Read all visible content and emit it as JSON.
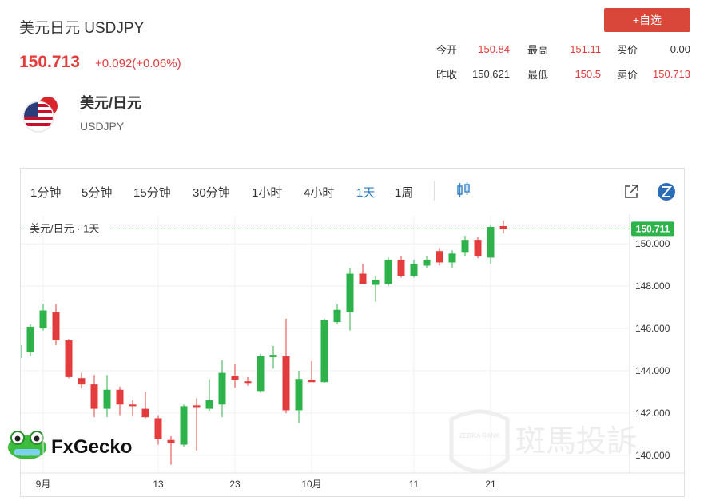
{
  "header": {
    "title": "美元日元 USDJPY",
    "price": "150.713",
    "change": "+0.092(+0.06%)",
    "button": "+自选",
    "stats": [
      [
        {
          "label": "今开",
          "value": "150.84"
        },
        {
          "label": "最高",
          "value": "151.11"
        },
        {
          "label": "买价",
          "value": "0.00"
        }
      ],
      [
        {
          "label": "昨收",
          "value": "150.621"
        },
        {
          "label": "最低",
          "value": "150.5"
        },
        {
          "label": "卖价",
          "value": "150.713"
        }
      ]
    ],
    "name": "美元/日元",
    "code": "USDJPY"
  },
  "toolbar": {
    "intervals": [
      "1分钟",
      "5分钟",
      "15分钟",
      "30分钟",
      "1小时",
      "4小时",
      "1天",
      "1周"
    ],
    "active": 6
  },
  "watermarks": {
    "brand": "FxGecko",
    "zebra": "斑馬投訴",
    "zebra_en": "ZEBRA RANK"
  },
  "chart_data": {
    "type": "candlestick",
    "legend": "美元/日元 · 1天",
    "up_color": "#2db34a",
    "down_color": "#e23c3c",
    "categories": [
      null,
      null,
      "9月",
      null,
      null,
      null,
      null,
      null,
      null,
      null,
      null,
      "13",
      null,
      null,
      null,
      null,
      null,
      "23",
      null,
      null,
      null,
      null,
      null,
      "10月",
      null,
      null,
      null,
      null,
      null,
      null,
      null,
      "11",
      null,
      null,
      null,
      null,
      null,
      "21",
      null
    ],
    "open": [
      144.6,
      144.87,
      146.0,
      146.77,
      145.44,
      143.65,
      143.35,
      142.2,
      143.1,
      142.4,
      142.2,
      141.75,
      140.72,
      140.5,
      142.36,
      142.2,
      142.4,
      143.76,
      143.5,
      143.04,
      144.64,
      144.68,
      142.13,
      143.57,
      143.46,
      146.3,
      146.77,
      148.59,
      148.06,
      148.1,
      149.24,
      148.48,
      148.97,
      149.66,
      149.12,
      149.58,
      150.19,
      149.35,
      150.84
    ],
    "high": [
      145.4,
      146.2,
      147.15,
      147.15,
      145.5,
      143.9,
      143.8,
      143.8,
      143.25,
      142.6,
      143.0,
      141.9,
      140.9,
      142.4,
      142.7,
      143.6,
      144.5,
      144.3,
      143.7,
      144.8,
      145.17,
      146.46,
      144.0,
      144.45,
      146.46,
      147.15,
      148.86,
      149.05,
      148.48,
      149.35,
      149.43,
      149.24,
      149.43,
      149.81,
      149.7,
      150.38,
      150.34,
      150.9,
      151.11
    ],
    "low": [
      144.4,
      144.7,
      145.9,
      145.2,
      143.65,
      143.15,
      141.8,
      141.8,
      141.9,
      141.85,
      141.75,
      140.5,
      139.55,
      140.4,
      140.23,
      142.1,
      141.8,
      143.2,
      143.3,
      142.96,
      144.1,
      142.0,
      141.52,
      143.46,
      143.43,
      146.2,
      145.9,
      148.1,
      147.26,
      148.0,
      148.4,
      148.4,
      148.86,
      148.97,
      148.86,
      149.43,
      149.32,
      149.05,
      150.5
    ],
    "close": [
      145.2,
      146.08,
      146.85,
      145.44,
      143.7,
      143.35,
      142.2,
      143.1,
      142.4,
      142.32,
      141.8,
      140.76,
      140.57,
      142.32,
      142.28,
      142.6,
      143.9,
      143.57,
      143.42,
      144.68,
      144.75,
      142.13,
      143.61,
      143.46,
      146.39,
      146.88,
      148.59,
      148.1,
      148.29,
      149.24,
      148.48,
      149.05,
      149.24,
      149.12,
      149.54,
      150.19,
      149.43,
      150.8,
      150.711
    ],
    "last_price": 150.711,
    "ylim": [
      139.16,
      151.33
    ],
    "yticks": [
      {
        "value": 140,
        "label": "140.000"
      },
      {
        "value": 142,
        "label": "142.000"
      },
      {
        "value": 144,
        "label": "144.000"
      },
      {
        "value": 146,
        "label": "146.000"
      },
      {
        "value": 148,
        "label": "148.000"
      },
      {
        "value": 150,
        "label": "150.000"
      }
    ],
    "grid": true
  }
}
